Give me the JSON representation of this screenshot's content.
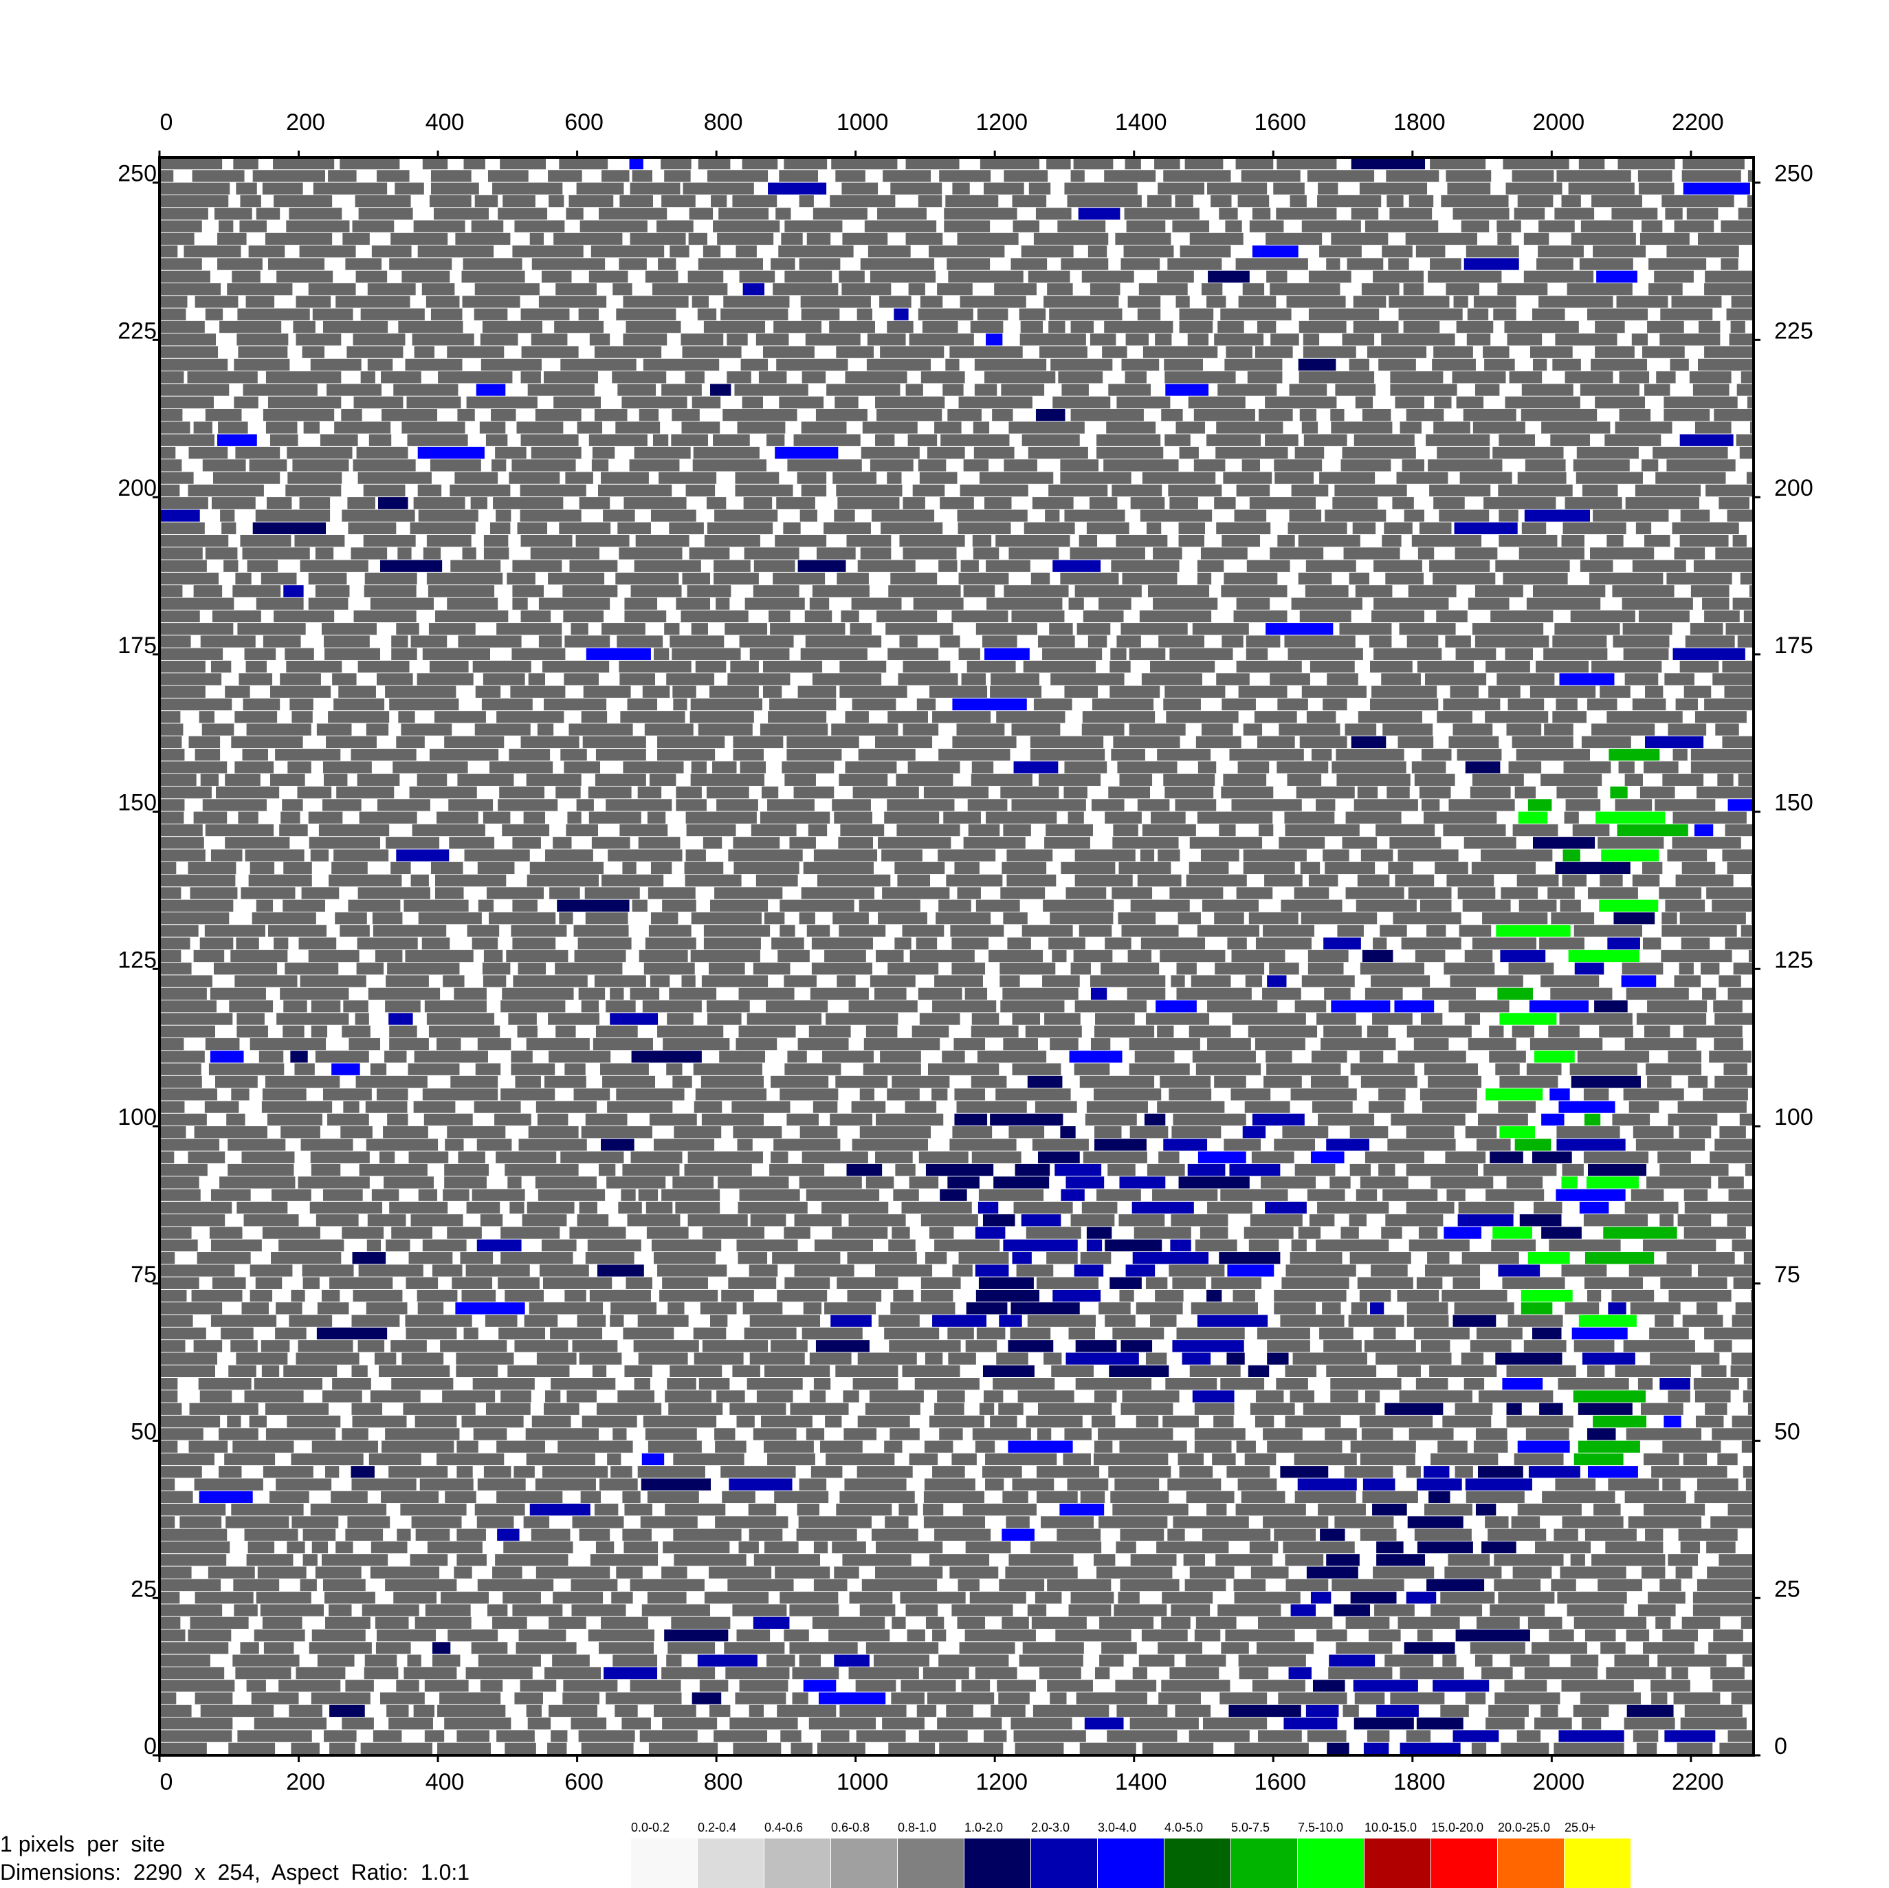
{
  "chart_data": {
    "type": "heatmap",
    "title": "",
    "xlabel": "",
    "ylabel": "",
    "xlim": [
      0,
      2290
    ],
    "ylim": [
      0,
      254
    ],
    "x_ticks": [
      0,
      200,
      400,
      600,
      800,
      1000,
      1200,
      1400,
      1600,
      1800,
      2000,
      2200
    ],
    "x_tick_labels": [
      "0",
      "200",
      "400",
      "600",
      "800",
      "1000",
      "1200",
      "1400",
      "1600",
      "1800",
      "2000",
      "2200"
    ],
    "y_ticks": [
      0,
      25,
      50,
      75,
      100,
      125,
      150,
      175,
      200,
      225,
      250
    ],
    "y_tick_labels": [
      "0",
      "25",
      "50",
      "75",
      "100",
      "125",
      "150",
      "175",
      "200",
      "225",
      "250"
    ],
    "axes_on": [
      "top",
      "bottom",
      "left",
      "right"
    ],
    "grid": false,
    "legend": {
      "placement": "bottom",
      "bins": [
        {
          "label": "0.0-0.2",
          "color": "#f8f8f8"
        },
        {
          "label": "0.2-0.4",
          "color": "#dcdcdc"
        },
        {
          "label": "0.4-0.6",
          "color": "#c0c0c0"
        },
        {
          "label": "0.6-0.8",
          "color": "#a0a0a0"
        },
        {
          "label": "0.8-1.0",
          "color": "#808080"
        },
        {
          "label": "1.0-2.0",
          "color": "#000060"
        },
        {
          "label": "2.0-3.0",
          "color": "#0000b0"
        },
        {
          "label": "3.0-4.0",
          "color": "#0000ff"
        },
        {
          "label": "4.0-5.0",
          "color": "#006400"
        },
        {
          "label": "5.0-7.5",
          "color": "#00b400"
        },
        {
          "label": "7.5-10.0",
          "color": "#00ff00"
        },
        {
          "label": "10.0-15.0",
          "color": "#b00000"
        },
        {
          "label": "15.0-20.0",
          "color": "#ff0000"
        },
        {
          "label": "20.0-25.0",
          "color": "#ff6600"
        },
        {
          "label": "25.0+",
          "color": "#ffff00"
        }
      ]
    },
    "dominant_color": "#666666",
    "dense_color_regions": [
      {
        "x": [
          1900,
          2100
        ],
        "y": [
          40,
          160
        ],
        "bins": [
          "1.0-2.0",
          "2.0-3.0",
          "3.0-4.0",
          "5.0-7.5",
          "7.5-10.0"
        ]
      },
      {
        "x": [
          1100,
          1600
        ],
        "y": [
          60,
          100
        ],
        "bins": [
          "1.0-2.0",
          "2.0-3.0"
        ]
      },
      {
        "x": [
          1600,
          1900
        ],
        "y": [
          0,
          45
        ],
        "bins": [
          "1.0-2.0",
          "2.0-3.0"
        ]
      }
    ]
  },
  "footer": {
    "pixels_per_site": "1 pixels  per  site",
    "dimensions": "Dimensions:  2290  x  254,  Aspect  Ratio:  1.0:1"
  }
}
